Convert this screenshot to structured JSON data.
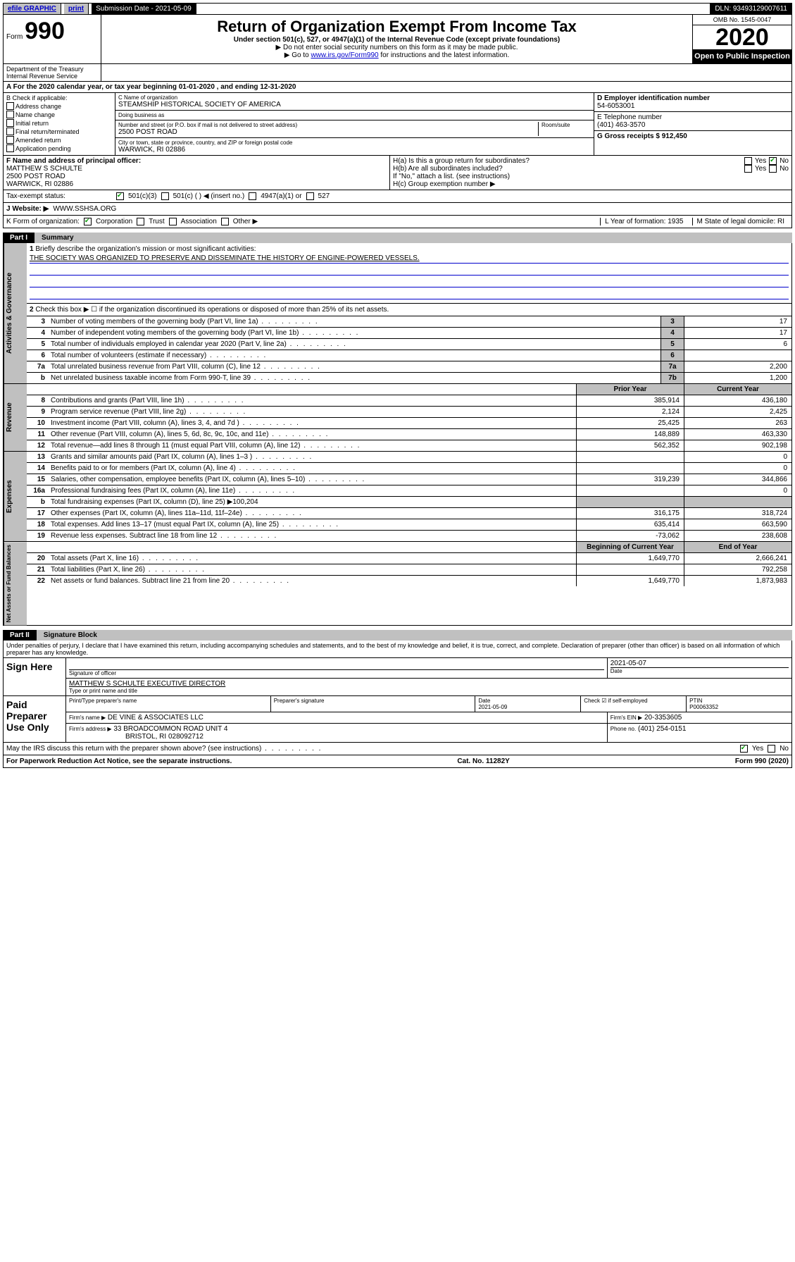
{
  "topbar": {
    "efile": "efile GRAPHIC",
    "print": "print",
    "sub_date_label": "Submission Date - 2021-05-09",
    "dln": "DLN: 93493129007611"
  },
  "header": {
    "form_prefix": "Form",
    "form_num": "990",
    "title": "Return of Organization Exempt From Income Tax",
    "subtitle": "Under section 501(c), 527, or 4947(a)(1) of the Internal Revenue Code (except private foundations)",
    "ssn": "▶ Do not enter social security numbers on this form as it may be made public.",
    "goto_prefix": "▶ Go to ",
    "goto_link": "www.irs.gov/Form990",
    "goto_suffix": " for instructions and the latest information.",
    "omb": "OMB No. 1545-0047",
    "year": "2020",
    "open": "Open to Public Inspection",
    "dept": "Department of the Treasury Internal Revenue Service"
  },
  "row_a": "A For the 2020 calendar year, or tax year beginning 01-01-2020    , and ending 12-31-2020",
  "col_b": {
    "label": "B Check if applicable:",
    "items": [
      "Address change",
      "Name change",
      "Initial return",
      "Final return/terminated",
      "Amended return",
      "Application pending"
    ]
  },
  "col_c": {
    "name_label": "C Name of organization",
    "name": "STEAMSHIP HISTORICAL SOCIETY OF AMERICA",
    "dba_label": "Doing business as",
    "addr_label": "Number and street (or P.O. box if mail is not delivered to street address)",
    "addr": "2500 POST ROAD",
    "room_label": "Room/suite",
    "city_label": "City or town, state or province, country, and ZIP or foreign postal code",
    "city": "WARWICK, RI  02886"
  },
  "col_right": {
    "d_label": "D Employer identification number",
    "d_val": "54-6053001",
    "e_label": "E Telephone number",
    "e_val": "(401) 463-3570",
    "g_label": "G Gross receipts $ 912,450"
  },
  "fgh": {
    "f_label": "F  Name and address of principal officer:",
    "f_name": "MATTHEW S SCHULTE",
    "f_addr1": "2500 POST ROAD",
    "f_addr2": "WARWICK, RI  02886",
    "ha": "H(a)  Is this a group return for subordinates?",
    "hb": "H(b)  Are all subordinates included?",
    "hb_note": "If \"No,\" attach a list. (see instructions)",
    "hc": "H(c)  Group exemption number ▶",
    "yes": "Yes",
    "no": "No"
  },
  "tax": {
    "label": "Tax-exempt status:",
    "c3": "501(c)(3)",
    "c_other": "501(c) (   ) ◀ (insert no.)",
    "a1": "4947(a)(1) or",
    "527": "527"
  },
  "website": {
    "label": "J   Website: ▶",
    "url": "WWW.SSHSA.ORG"
  },
  "k_row": {
    "k_label": "K Form of organization:",
    "corp": "Corporation",
    "trust": "Trust",
    "assoc": "Association",
    "other": "Other ▶",
    "l_label": "L Year of formation: 1935",
    "m_label": "M State of legal domicile: RI"
  },
  "part1": {
    "label": "Part I",
    "title": "Summary"
  },
  "gov": {
    "tab": "Activities & Governance",
    "l1": "Briefly describe the organization's mission or most significant activities:",
    "l1_val": "THE SOCIETY WAS ORGANIZED TO PRESERVE AND DISSEMINATE THE HISTORY OF ENGINE-POWERED VESSELS.",
    "l2": "Check this box ▶ ☐  if the organization discontinued its operations or disposed of more than 25% of its net assets.",
    "rows": [
      {
        "n": "3",
        "desc": "Number of voting members of the governing body (Part VI, line 1a)",
        "box": "3",
        "val": "17"
      },
      {
        "n": "4",
        "desc": "Number of independent voting members of the governing body (Part VI, line 1b)",
        "box": "4",
        "val": "17"
      },
      {
        "n": "5",
        "desc": "Total number of individuals employed in calendar year 2020 (Part V, line 2a)",
        "box": "5",
        "val": "6"
      },
      {
        "n": "6",
        "desc": "Total number of volunteers (estimate if necessary)",
        "box": "6",
        "val": ""
      },
      {
        "n": "7a",
        "desc": "Total unrelated business revenue from Part VIII, column (C), line 12",
        "box": "7a",
        "val": "2,200"
      },
      {
        "n": "b",
        "desc": "Net unrelated business taxable income from Form 990-T, line 39",
        "box": "7b",
        "val": "1,200"
      }
    ]
  },
  "rev": {
    "tab": "Revenue",
    "hdr_prior": "Prior Year",
    "hdr_curr": "Current Year",
    "rows": [
      {
        "n": "8",
        "desc": "Contributions and grants (Part VIII, line 1h)",
        "prior": "385,914",
        "curr": "436,180"
      },
      {
        "n": "9",
        "desc": "Program service revenue (Part VIII, line 2g)",
        "prior": "2,124",
        "curr": "2,425"
      },
      {
        "n": "10",
        "desc": "Investment income (Part VIII, column (A), lines 3, 4, and 7d )",
        "prior": "25,425",
        "curr": "263"
      },
      {
        "n": "11",
        "desc": "Other revenue (Part VIII, column (A), lines 5, 6d, 8c, 9c, 10c, and 11e)",
        "prior": "148,889",
        "curr": "463,330"
      },
      {
        "n": "12",
        "desc": "Total revenue—add lines 8 through 11 (must equal Part VIII, column (A), line 12)",
        "prior": "562,352",
        "curr": "902,198"
      }
    ]
  },
  "exp": {
    "tab": "Expenses",
    "rows": [
      {
        "n": "13",
        "desc": "Grants and similar amounts paid (Part IX, column (A), lines 1–3 )",
        "prior": "",
        "curr": "0"
      },
      {
        "n": "14",
        "desc": "Benefits paid to or for members (Part IX, column (A), line 4)",
        "prior": "",
        "curr": "0"
      },
      {
        "n": "15",
        "desc": "Salaries, other compensation, employee benefits (Part IX, column (A), lines 5–10)",
        "prior": "319,239",
        "curr": "344,866"
      },
      {
        "n": "16a",
        "desc": "Professional fundraising fees (Part IX, column (A), line 11e)",
        "prior": "",
        "curr": "0"
      },
      {
        "n": "b",
        "desc": "Total fundraising expenses (Part IX, column (D), line 25) ▶100,204",
        "prior": "—",
        "curr": "—"
      },
      {
        "n": "17",
        "desc": "Other expenses (Part IX, column (A), lines 11a–11d, 11f–24e)",
        "prior": "316,175",
        "curr": "318,724"
      },
      {
        "n": "18",
        "desc": "Total expenses. Add lines 13–17 (must equal Part IX, column (A), line 25)",
        "prior": "635,414",
        "curr": "663,590"
      },
      {
        "n": "19",
        "desc": "Revenue less expenses. Subtract line 18 from line 12",
        "prior": "-73,062",
        "curr": "238,608"
      }
    ]
  },
  "net": {
    "tab": "Net Assets or Fund Balances",
    "hdr_beg": "Beginning of Current Year",
    "hdr_end": "End of Year",
    "rows": [
      {
        "n": "20",
        "desc": "Total assets (Part X, line 16)",
        "prior": "1,649,770",
        "curr": "2,666,241"
      },
      {
        "n": "21",
        "desc": "Total liabilities (Part X, line 26)",
        "prior": "",
        "curr": "792,258"
      },
      {
        "n": "22",
        "desc": "Net assets or fund balances. Subtract line 21 from line 20",
        "prior": "1,649,770",
        "curr": "1,873,983"
      }
    ]
  },
  "part2": {
    "label": "Part II",
    "title": "Signature Block"
  },
  "perjury": "Under penalties of perjury, I declare that I have examined this return, including accompanying schedules and statements, and to the best of my knowledge and belief, it is true, correct, and complete. Declaration of preparer (other than officer) is based on all information of which preparer has any knowledge.",
  "sign": {
    "left": "Sign Here",
    "sig_label": "Signature of officer",
    "date": "2021-05-07",
    "date_label": "Date",
    "name": "MATTHEW S SCHULTE  EXECUTIVE DIRECTOR",
    "name_label": "Type or print name and title"
  },
  "paid": {
    "left": "Paid Preparer Use Only",
    "h1": "Print/Type preparer's name",
    "h2": "Preparer's signature",
    "h3_label": "Date",
    "h3": "2021-05-09",
    "h4": "Check ☑ if self-employed",
    "h5_label": "PTIN",
    "h5": "P00063352",
    "firm_label": "Firm's name    ▶",
    "firm": "DE VINE & ASSOCIATES LLC",
    "ein_label": "Firm's EIN ▶",
    "ein": "20-3353605",
    "addr_label": "Firm's address ▶",
    "addr1": "33 BROADCOMMON ROAD UNIT 4",
    "addr2": "BRISTOL, RI  028092712",
    "phone_label": "Phone no.",
    "phone": "(401) 254-0151"
  },
  "discuss": {
    "q": "May the IRS discuss this return with the preparer shown above? (see instructions)",
    "yes": "Yes",
    "no": "No"
  },
  "footer": {
    "pra": "For Paperwork Reduction Act Notice, see the separate instructions.",
    "cat": "Cat. No. 11282Y",
    "form": "Form 990 (2020)"
  }
}
